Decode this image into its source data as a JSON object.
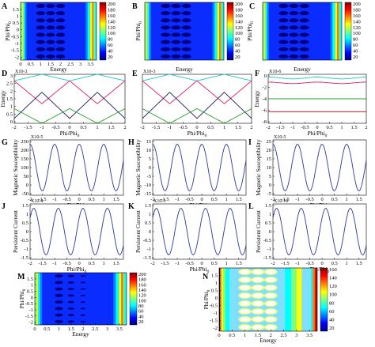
{
  "figure": {
    "panel_letters": [
      "A",
      "B",
      "C",
      "D",
      "E",
      "F",
      "G",
      "H",
      "I",
      "J",
      "K",
      "L",
      "M",
      "N"
    ]
  },
  "labels": {
    "phi": "Phi/Phi",
    "phi_sub": "0",
    "energy": "Energy",
    "msus": "Magnetic Susceptibility",
    "pcur": "Persistent Current"
  },
  "colors": {
    "series_cyan": "#22c8c8",
    "series_magenta": "#d62070",
    "series_navy": "#1a1a5e",
    "series_green": "#2ca02c",
    "series_blue": "#2b3a9e",
    "series_red": "#c00000",
    "colormap": [
      "#00007f",
      "#0000ff",
      "#007fff",
      "#00ffff",
      "#7fff7f",
      "#ffff00",
      "#ff7f00",
      "#ff0000",
      "#7f0000"
    ]
  },
  "chart_data": [
    {
      "id": "A",
      "type": "heatmap",
      "xlabel": "Energy",
      "ylabel": "Phi/Phi0",
      "xticks": [
        "0",
        "0.5",
        "1",
        "1.5",
        "2",
        "2.5",
        "3",
        "3.5"
      ],
      "yticks": [
        "1.5",
        "1",
        "0.5",
        "0",
        "-0.5",
        "-1",
        "-1.5",
        "-2"
      ],
      "colorbar_ticks": [
        "200",
        "180",
        "160",
        "140",
        "120",
        "100",
        "80",
        "60",
        "40",
        "20"
      ],
      "xlim": [
        0,
        3.8
      ],
      "ylim": [
        -2,
        2
      ]
    },
    {
      "id": "B",
      "type": "heatmap",
      "xlabel": "Energy",
      "ylabel": "",
      "ylabel_partial": "Phi/Phi0",
      "colorbar_ticks": [
        "200",
        "180",
        "160",
        "140",
        "120",
        "100",
        "80",
        "60",
        "40",
        "20"
      ],
      "xlim": [
        0,
        3.8
      ],
      "ylim": [
        -2,
        2
      ]
    },
    {
      "id": "C",
      "type": "heatmap",
      "xlabel": "Energy",
      "ylabel": "Phi/Phi0",
      "colorbar_ticks": [
        "200",
        "180",
        "160",
        "140",
        "120",
        "100",
        "80",
        "60",
        "40",
        "20"
      ],
      "xlim": [
        0,
        3.8
      ],
      "ylim": [
        -2,
        2
      ]
    },
    {
      "id": "D",
      "type": "line",
      "xlabel": "Phi/Phi0",
      "ylabel": "Energy",
      "multiplier": "X10-3",
      "xticks": [
        "-2",
        "-1.5",
        "-1",
        "-0.5",
        "0",
        "0.5",
        "1",
        "1.5",
        "2"
      ],
      "yticks": [
        "3",
        "2.5",
        "2",
        "1.5",
        "1",
        "0.5",
        "0"
      ],
      "xlim": [
        -2,
        2
      ],
      "ylim": [
        0,
        3
      ],
      "series": [
        {
          "color": "cyan",
          "levels": [
            2.6,
            3.0
          ],
          "period": 2,
          "phase": 0
        },
        {
          "color": "magenta",
          "levels": [
            1.3,
            2.6
          ],
          "period": 2,
          "phase": 1
        },
        {
          "color": "navy",
          "levels": [
            0.4,
            1.9
          ],
          "period": 2,
          "phase": 0.5
        },
        {
          "color": "green",
          "levels": [
            0,
            0.8
          ],
          "period": 2,
          "phase": 1.5
        }
      ]
    },
    {
      "id": "E",
      "type": "line",
      "xlabel": "Phi/Phi0",
      "ylabel": "",
      "multiplier": "X10-3",
      "xticks": [
        "-2",
        "-1.5",
        "-1",
        "-0.5",
        "0",
        "0.5",
        "1",
        "1.5",
        "2"
      ],
      "xlim": [
        -2,
        2
      ],
      "ylim": [
        0,
        3
      ]
    },
    {
      "id": "F",
      "type": "line",
      "xlabel": "Phi/Phi0",
      "ylabel": "Energy",
      "multiplier": "X10-6",
      "xticks": [
        "-2",
        "-1.5",
        "-1",
        "-0.5",
        "0",
        "0.5",
        "1",
        "1.5",
        "2"
      ],
      "yticks": [
        "0",
        "-2",
        "-4",
        "-6",
        "-8"
      ],
      "xlim": [
        -2,
        2
      ],
      "ylim": [
        -8,
        0
      ],
      "series": [
        {
          "color": "cyan",
          "values_around": -0.7
        },
        {
          "color": "magenta",
          "values_around": -1.5
        },
        {
          "color": "green",
          "values_around": -4.0
        },
        {
          "color": "red",
          "values_around": -6.0
        }
      ]
    },
    {
      "id": "G",
      "type": "line",
      "xlabel": "Phi/Phi0",
      "ylabel": "Magnetic Susceptibility",
      "multiplier": "X10-5",
      "xticks": [
        "-2",
        "-1.5",
        "-1",
        "-0.5",
        "0",
        "0.5",
        "1",
        "1.5"
      ],
      "yticks": [
        "250",
        "200",
        "150",
        "100",
        "50",
        "0",
        "-50"
      ],
      "xlim": [
        -2,
        1.8
      ],
      "ylim": [
        -50,
        250
      ]
    },
    {
      "id": "H",
      "type": "line",
      "xlabel": "Phi/Phi0",
      "ylabel": "Magnetic Susceptibility",
      "xticks": [
        "-2",
        "-1.5",
        "-1",
        "-0.5",
        "0",
        "0.5",
        "1",
        "1.5"
      ],
      "yticks": [
        "15",
        "10",
        "5",
        "0",
        "-5",
        "-10",
        "-15"
      ],
      "xlim": [
        -2,
        1.8
      ],
      "ylim": [
        -15,
        15
      ]
    },
    {
      "id": "I",
      "type": "line",
      "xlabel": "Phi/Phi0",
      "ylabel": "Magnetic Susceptibility",
      "multiplier": "X10-5",
      "xticks": [
        "-2",
        "-1.5",
        "-1",
        "-0.5",
        "0",
        "0.5",
        "1",
        "1.5"
      ],
      "yticks": [
        "25",
        "20",
        "15",
        "10",
        "5",
        "0",
        "-5"
      ],
      "xlim": [
        -2,
        1.8
      ],
      "ylim": [
        -5,
        25
      ]
    },
    {
      "id": "J",
      "type": "line",
      "xlabel": "Phi/Phi0",
      "ylabel": "Persistent Current",
      "multiplier": "X10-4",
      "xticks": [
        "-2",
        "-1.5",
        "-1",
        "-0.5",
        "0",
        "0.5",
        "1",
        "1.5"
      ],
      "yticks": [
        "1.5",
        "1",
        "0.5",
        "0",
        "-0.5",
        "-1",
        "-1.5"
      ],
      "xlim": [
        -2,
        1.8
      ],
      "ylim": [
        -1.5,
        1.5
      ]
    },
    {
      "id": "K",
      "type": "line",
      "xlabel": "Phi/Phi0",
      "ylabel": "Persistent Current",
      "multiplier": "X10-5",
      "xticks": [
        "-2",
        "-1.5",
        "-1",
        "-0.5",
        "0",
        "0.5",
        "1",
        "1.5"
      ],
      "yticks": [
        "1.5",
        "1",
        "0.5",
        "0",
        "-0.5",
        "-1",
        "-1.5"
      ],
      "xlim": [
        -2,
        1.8
      ],
      "ylim": [
        -1.5,
        1.5
      ]
    },
    {
      "id": "L",
      "type": "line",
      "xlabel": "Phi/Phi0",
      "ylabel": "Persistent Current",
      "multiplier": "X10-10",
      "xticks": [
        "-2",
        "-1.5",
        "-1",
        "-0.5",
        "0",
        "0.5",
        "1",
        "1.5"
      ],
      "yticks": [
        "1.5",
        "1",
        "0.5",
        "0",
        "-0.5",
        "-1",
        "-1.5"
      ],
      "xlim": [
        -2,
        1.8
      ],
      "ylim": [
        -1.5,
        1.5
      ]
    },
    {
      "id": "M",
      "type": "heatmap",
      "xlabel": "Energy",
      "ylabel": "Phi/Phi0",
      "xticks": [
        "0",
        "0.5",
        "1",
        "1.5",
        "2",
        "2.5",
        "3",
        "3.5"
      ],
      "yticks": [
        "1.5",
        "1",
        "0.5",
        "0",
        "-0.5",
        "-1",
        "-1.5",
        "-2"
      ],
      "colorbar_ticks": [
        "200",
        "180",
        "160",
        "140",
        "120",
        "100",
        "80",
        "60",
        "40",
        "20"
      ],
      "xlim": [
        0,
        3.8
      ],
      "ylim": [
        -2,
        2
      ]
    },
    {
      "id": "N",
      "type": "heatmap",
      "xlabel": "Energy",
      "ylabel": "Phi/Phi0",
      "xticks": [
        "0",
        "0.5",
        "1",
        "1.5",
        "2",
        "2.5",
        "3",
        "3.5"
      ],
      "yticks": [
        "1.5",
        "1",
        "0.5",
        "0",
        "-0.5",
        "-1",
        "-1.5",
        "-2"
      ],
      "colorbar_ticks": [
        "160",
        "140",
        "120",
        "100",
        "80",
        "60",
        "40",
        "20"
      ],
      "xlim": [
        0,
        3.8
      ],
      "ylim": [
        -2,
        2
      ]
    }
  ]
}
